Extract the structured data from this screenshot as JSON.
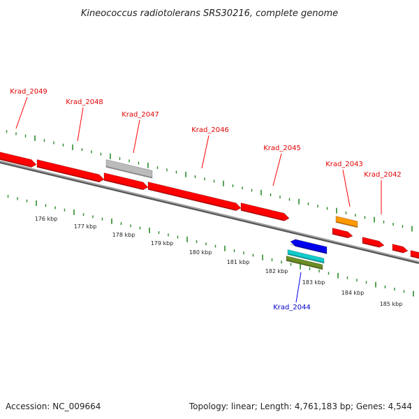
{
  "title": "Kineococcus radiotolerans SRS30216, complete genome",
  "footer": {
    "accession": "Accession: NC_009664",
    "stats": "Topology: linear; Length: 4,761,183 bp; Genes: 4,544"
  },
  "colors": {
    "forward_gene": "#ff0000",
    "pseudo_gene": "#bbbbbb",
    "reverse_gene": "#0000ee",
    "cyan_feature": "#11cccc",
    "olive_feature": "#6b8e23",
    "orange_feature": "#ff9900",
    "backbone": "#777777",
    "tick_marks": "#2a8a2a"
  },
  "forward_labels": [
    "Krad_2049",
    "Krad_2048",
    "Krad_2047",
    "Krad_2046",
    "Krad_2045",
    "Krad_2043",
    "Krad_2042"
  ],
  "reverse_labels": [
    "Krad_2044"
  ],
  "ruler_labels": [
    "176 kbp",
    "177 kbp",
    "178 kbp",
    "179 kbp",
    "180 kbp",
    "181 kbp",
    "182 kbp",
    "183 kbp",
    "184 kbp",
    "185 kbp"
  ]
}
